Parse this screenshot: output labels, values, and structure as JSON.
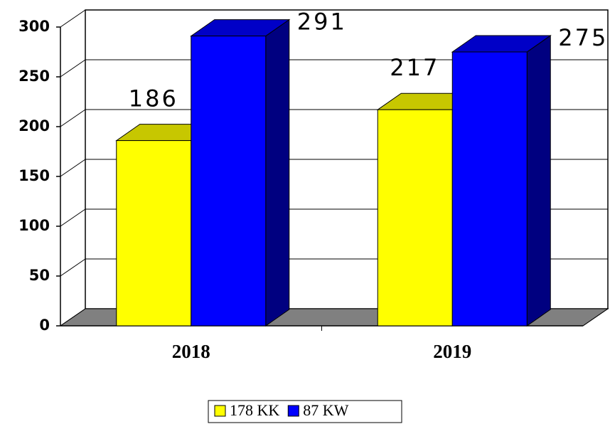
{
  "chart_data": {
    "type": "bar3d",
    "categories": [
      "2018",
      "2019"
    ],
    "series": [
      {
        "name": "178 KK",
        "color": "#ffff00",
        "values": [
          186,
          217
        ]
      },
      {
        "name": "87 KW",
        "color": "#0000ff",
        "values": [
          291,
          275
        ]
      }
    ],
    "ylim": [
      0,
      300
    ],
    "yticks": [
      0,
      50,
      100,
      150,
      200,
      250,
      300
    ],
    "grid": true,
    "legend": "bottom"
  }
}
